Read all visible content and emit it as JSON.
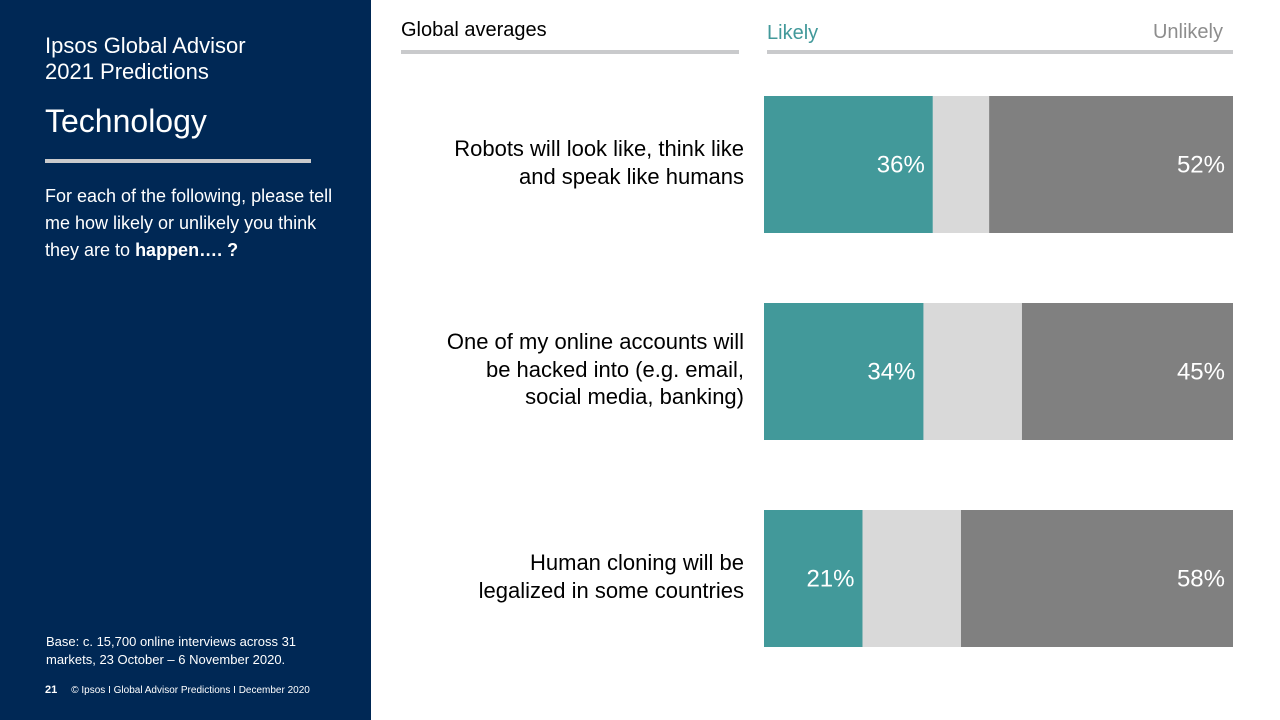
{
  "sidebar": {
    "brand_line1": "Ipsos Global Advisor",
    "brand_line2": "2021 Predictions",
    "section_title": "Technology",
    "question_text": "For each of the following, please tell me how likely or unlikely you think they are to ",
    "question_bold": "happen…. ?",
    "base_note": "Base: c. 15,700 online interviews across 31 markets,  23 October – 6 November 2020.",
    "page_number": "21",
    "footer_text": "© Ipsos I Global Advisor Predictions I December 2020"
  },
  "header": {
    "left": "Global averages",
    "likely": "Likely",
    "unlikely": "Unlikely"
  },
  "colors": {
    "likely": "#42999a",
    "neutral": "#d9d9d9",
    "unlikely": "#808080",
    "sidebar_bg": "#002855"
  },
  "chart_data": {
    "type": "bar",
    "stacked": true,
    "orientation": "horizontal",
    "categories": [
      "Robots will look like, think like and speak like humans",
      "One of my online accounts will be hacked into (e.g. email, social media, banking)",
      "Human cloning will be legalized in some countries"
    ],
    "category_lines": [
      [
        "Robots will look like, think like",
        "and speak like humans"
      ],
      [
        "One of my online accounts will",
        "be hacked into (e.g. email,",
        "social media, banking)"
      ],
      [
        "Human cloning will be",
        "legalized in some countries"
      ]
    ],
    "series": [
      {
        "name": "Likely",
        "values": [
          36,
          34,
          21
        ]
      },
      {
        "values": [
          12,
          21,
          21
        ]
      },
      {
        "name": "Unlikely",
        "values": [
          52,
          45,
          58
        ]
      }
    ],
    "data_labels": {
      "likely": [
        "36%",
        "34%",
        "21%"
      ],
      "unlikely": [
        "52%",
        "45%",
        "58%"
      ]
    },
    "xlim": [
      0,
      100
    ]
  }
}
